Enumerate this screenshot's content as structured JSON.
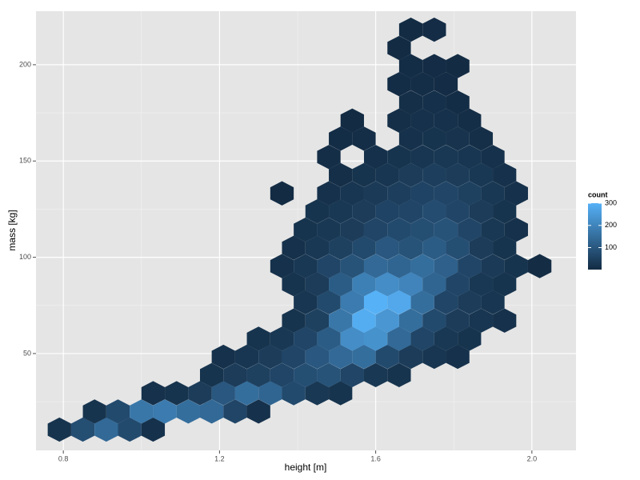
{
  "chart_data": {
    "type": "hexbin",
    "x_label": "height [m]",
    "y_label": "mass [kg]",
    "legend_title": "count",
    "xlim": [
      0.73,
      2.113
    ],
    "ylim": [
      -0.3,
      227.8
    ],
    "xticks": [
      0.8,
      1.2,
      1.6,
      {
        "value": 2,
        "label": "2.0"
      }
    ],
    "yticks": [
      50,
      100,
      150,
      200
    ],
    "x_minor_grid": [
      1.0,
      1.4,
      1.8
    ],
    "y_minor_grid": [
      25,
      75,
      125,
      175
    ],
    "binwidth": [
      0.06,
      9.43
    ],
    "clim": [
      1,
      300
    ],
    "legend_ticks": [
      100,
      200,
      300
    ],
    "colors": {
      "low": "#132B43",
      "high": "#56B1F7",
      "panel": "#E5E5E5",
      "grid": "#FFFFFF",
      "minor_grid": "#F2F2F2"
    },
    "grid": true,
    "legend_position": "right",
    "x": [
      0.79,
      0.85,
      0.91,
      0.97,
      1.03,
      0.88,
      0.94,
      1.0,
      1.06,
      1.12,
      1.18,
      1.24,
      1.3,
      1.03,
      1.09,
      1.15,
      1.21,
      1.27,
      1.33,
      1.39,
      1.45,
      1.51,
      1.18,
      1.24,
      1.3,
      1.36,
      1.42,
      1.48,
      1.54,
      1.6,
      1.66,
      1.21,
      1.27,
      1.33,
      1.39,
      1.45,
      1.51,
      1.57,
      1.63,
      1.69,
      1.75,
      1.81,
      1.3,
      1.36,
      1.42,
      1.48,
      1.54,
      1.6,
      1.66,
      1.72,
      1.78,
      1.84,
      1.39,
      1.45,
      1.51,
      1.57,
      1.63,
      1.69,
      1.75,
      1.81,
      1.87,
      1.93,
      1.42,
      1.48,
      1.54,
      1.6,
      1.66,
      1.72,
      1.78,
      1.84,
      1.9,
      1.39,
      1.45,
      1.51,
      1.57,
      1.63,
      1.69,
      1.75,
      1.81,
      1.87,
      1.93,
      1.36,
      1.42,
      1.48,
      1.54,
      1.6,
      1.66,
      1.72,
      1.78,
      1.84,
      1.9,
      1.96,
      2.02,
      1.39,
      1.45,
      1.51,
      1.57,
      1.63,
      1.69,
      1.75,
      1.81,
      1.87,
      1.93,
      1.42,
      1.48,
      1.54,
      1.6,
      1.66,
      1.72,
      1.78,
      1.84,
      1.9,
      1.96,
      1.45,
      1.51,
      1.57,
      1.63,
      1.69,
      1.75,
      1.81,
      1.87,
      1.93,
      1.36,
      1.48,
      1.54,
      1.6,
      1.66,
      1.72,
      1.78,
      1.84,
      1.9,
      1.96,
      1.51,
      1.57,
      1.63,
      1.69,
      1.75,
      1.81,
      1.87,
      1.93,
      1.48,
      1.6,
      1.66,
      1.72,
      1.78,
      1.84,
      1.9,
      1.51,
      1.57,
      1.69,
      1.75,
      1.81,
      1.87,
      1.54,
      1.66,
      1.72,
      1.78,
      1.84,
      1.69,
      1.75,
      1.81,
      1.66,
      1.72,
      1.78,
      1.69,
      1.75,
      1.81,
      1.66,
      1.69,
      1.75
    ],
    "y": [
      10.5,
      10.5,
      10.5,
      10.5,
      10.5,
      19.9,
      19.9,
      19.9,
      19.9,
      19.9,
      19.9,
      19.9,
      19.9,
      29.4,
      29.4,
      29.4,
      29.4,
      29.4,
      29.4,
      29.4,
      29.4,
      29.4,
      38.8,
      38.8,
      38.8,
      38.8,
      38.8,
      38.8,
      38.8,
      38.8,
      38.8,
      48.3,
      48.3,
      48.3,
      48.3,
      48.3,
      48.3,
      48.3,
      48.3,
      48.3,
      48.3,
      48.3,
      57.7,
      57.7,
      57.7,
      57.7,
      57.7,
      57.7,
      57.7,
      57.7,
      57.7,
      57.7,
      67.1,
      67.1,
      67.1,
      67.1,
      67.1,
      67.1,
      67.1,
      67.1,
      67.1,
      67.1,
      76.6,
      76.6,
      76.6,
      76.6,
      76.6,
      76.6,
      76.6,
      76.6,
      76.6,
      86.0,
      86.0,
      86.0,
      86.0,
      86.0,
      86.0,
      86.0,
      86.0,
      86.0,
      86.0,
      95.4,
      95.4,
      95.4,
      95.4,
      95.4,
      95.4,
      95.4,
      95.4,
      95.4,
      95.4,
      95.4,
      95.4,
      104.9,
      104.9,
      104.9,
      104.9,
      104.9,
      104.9,
      104.9,
      104.9,
      104.9,
      104.9,
      114.3,
      114.3,
      114.3,
      114.3,
      114.3,
      114.3,
      114.3,
      114.3,
      114.3,
      114.3,
      123.8,
      123.8,
      123.8,
      123.8,
      123.8,
      123.8,
      123.8,
      123.8,
      123.8,
      133.2,
      133.2,
      133.2,
      133.2,
      133.2,
      133.2,
      133.2,
      133.2,
      133.2,
      133.2,
      142.7,
      142.7,
      142.7,
      142.7,
      142.7,
      142.7,
      142.7,
      142.7,
      152.1,
      152.1,
      152.1,
      152.1,
      152.1,
      152.1,
      152.1,
      161.6,
      161.6,
      161.6,
      161.6,
      161.6,
      161.6,
      171.0,
      171.0,
      171.0,
      171.0,
      171.0,
      180.4,
      180.4,
      180.4,
      189.9,
      189.9,
      189.9,
      199.3,
      199.3,
      199.3,
      208.7,
      218.2,
      218.2
    ],
    "values": [
      20,
      80,
      140,
      70,
      15,
      20,
      70,
      170,
      180,
      150,
      140,
      60,
      15,
      15,
      20,
      40,
      100,
      150,
      130,
      70,
      30,
      20,
      20,
      40,
      50,
      60,
      80,
      90,
      60,
      30,
      20,
      15,
      25,
      40,
      60,
      100,
      140,
      150,
      70,
      40,
      25,
      15,
      20,
      30,
      60,
      110,
      220,
      230,
      140,
      60,
      30,
      20,
      20,
      50,
      170,
      290,
      240,
      150,
      70,
      40,
      25,
      15,
      25,
      70,
      180,
      300,
      280,
      150,
      60,
      40,
      25,
      20,
      40,
      110,
      190,
      220,
      200,
      130,
      60,
      30,
      20,
      15,
      30,
      60,
      90,
      140,
      130,
      150,
      120,
      60,
      35,
      20,
      5,
      15,
      30,
      50,
      70,
      100,
      90,
      110,
      80,
      40,
      20,
      20,
      30,
      40,
      60,
      70,
      80,
      90,
      60,
      30,
      15,
      20,
      30,
      40,
      55,
      60,
      75,
      60,
      40,
      20,
      3,
      15,
      25,
      35,
      45,
      55,
      60,
      50,
      30,
      15,
      10,
      20,
      25,
      40,
      45,
      40,
      30,
      15,
      8,
      12,
      20,
      25,
      30,
      25,
      15,
      6,
      8,
      15,
      20,
      18,
      10,
      3,
      10,
      15,
      15,
      8,
      10,
      12,
      6,
      6,
      8,
      4,
      6,
      4,
      3,
      3,
      3,
      4
    ]
  }
}
